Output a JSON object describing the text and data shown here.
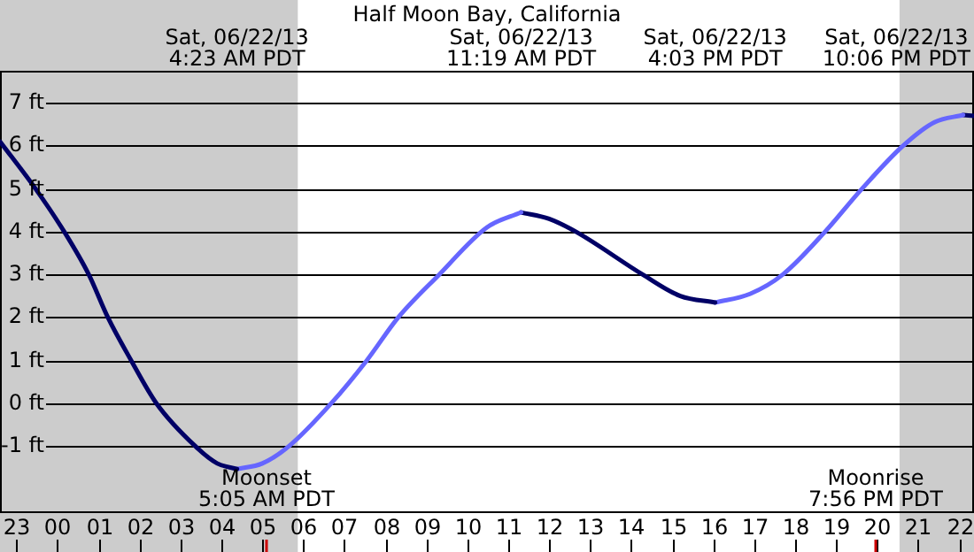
{
  "chart_data": {
    "type": "line",
    "title": "Half Moon Bay, California",
    "xlim": [
      "--06-21T22:36",
      "--06-22T22:22"
    ],
    "ylim": [
      -2.5,
      7.75
    ],
    "xticks": [
      {
        "value": "--06-21T23:00",
        "label": "23"
      },
      {
        "value": "--06-22T00:00",
        "label": "00"
      },
      {
        "value": "--06-22T01:00",
        "label": "01"
      },
      {
        "value": "--06-22T02:00",
        "label": "02"
      },
      {
        "value": "--06-22T03:00",
        "label": "03"
      },
      {
        "value": "--06-22T04:00",
        "label": "04"
      },
      {
        "value": "--06-22T05:00",
        "label": "05"
      },
      {
        "value": "--06-22T06:00",
        "label": "06"
      },
      {
        "value": "--06-22T07:00",
        "label": "07"
      },
      {
        "value": "--06-22T08:00",
        "label": "08"
      },
      {
        "value": "--06-22T09:00",
        "label": "09"
      },
      {
        "value": "--06-22T10:00",
        "label": "10"
      },
      {
        "value": "--06-22T11:00",
        "label": "11"
      },
      {
        "value": "--06-22T12:00",
        "label": "12"
      },
      {
        "value": "--06-22T13:00",
        "label": "13"
      },
      {
        "value": "--06-22T14:00",
        "label": "14"
      },
      {
        "value": "--06-22T15:00",
        "label": "15"
      },
      {
        "value": "--06-22T16:00",
        "label": "16"
      },
      {
        "value": "--06-22T17:00",
        "label": "17"
      },
      {
        "value": "--06-22T18:00",
        "label": "18"
      },
      {
        "value": "--06-22T19:00",
        "label": "19"
      },
      {
        "value": "--06-22T20:00",
        "label": "20"
      },
      {
        "value": "--06-22T21:00",
        "label": "21"
      },
      {
        "value": "--06-22T22:00",
        "label": "22"
      }
    ],
    "yticks": [
      {
        "value": -1,
        "label": "-1 ft"
      },
      {
        "value": 0,
        "label": "0 ft"
      },
      {
        "value": 1,
        "label": "1 ft"
      },
      {
        "value": 2,
        "label": "2 ft"
      },
      {
        "value": 3,
        "label": "3 ft"
      },
      {
        "value": 4,
        "label": "4 ft"
      },
      {
        "value": 5,
        "label": "5 ft"
      },
      {
        "value": 6,
        "label": "6 ft"
      },
      {
        "value": 7,
        "label": "7 ft"
      }
    ],
    "grid": "y",
    "legend": false,
    "marker": "none",
    "line_style": "solid",
    "bands": [
      {
        "axis": "x",
        "from": "--06-21T22:36",
        "to": "--06-22T05:52",
        "color": "#cccccc"
      },
      {
        "axis": "x",
        "from": "--06-22T20:33",
        "to": "--06-22T22:22",
        "color": "#cccccc"
      }
    ],
    "ref_lines": [
      {
        "axis": "x",
        "value": "--06-22T05:05",
        "label": "Moonset\n5:05 AM PDT",
        "color": "#cc0000"
      },
      {
        "axis": "x",
        "value": "--06-22T19:56",
        "label": "Moonrise\n7:56 PM PDT",
        "color": "#cc0000"
      }
    ],
    "series": [
      {
        "color": "#000066",
        "x": [
          "--06-21T22:36",
          "--06-21T23:28",
          "--06-22T00:10",
          "--06-22T00:46",
          "--06-22T01:14",
          "--06-22T01:48",
          "--06-22T02:25",
          "--06-22T03:22",
          "--06-22T03:54",
          "--06-22T04:23"
        ],
        "values": [
          6.1,
          5,
          4,
          3,
          2,
          1,
          0,
          -1,
          -1.4,
          -1.53
        ]
      },
      {
        "color": "#6666ff",
        "x": [
          "--06-22T04:23",
          "--06-22T05:00",
          "--06-22T05:39",
          "--06-22T06:41",
          "--06-22T07:33",
          "--06-22T08:19",
          "--06-22T09:19",
          "--06-22T10:29",
          "--06-22T11:19"
        ],
        "values": [
          -1.53,
          -1.4,
          -1,
          0,
          1,
          2,
          3,
          4.1,
          4.45
        ]
      },
      {
        "color": "#000066",
        "x": [
          "--06-22T11:19",
          "--06-22T12:00",
          "--06-22T12:39",
          "--06-22T14:17",
          "--06-22T15:12",
          "--06-22T16:03"
        ],
        "values": [
          4.45,
          4.3,
          4,
          3,
          2.5,
          2.35
        ]
      },
      {
        "color": "#6666ff",
        "x": [
          "--06-22T16:03",
          "--06-22T16:54",
          "--06-22T17:42",
          "--06-22T18:44",
          "--06-22T19:38",
          "--06-22T20:38",
          "--06-22T21:24",
          "--06-22T22:06"
        ],
        "values": [
          2.35,
          2.55,
          3,
          4,
          5,
          6,
          6.55,
          6.72
        ]
      },
      {
        "color": "#000066",
        "x": [
          "--06-22T22:06",
          "--06-22T22:22"
        ],
        "values": [
          6.72,
          6.7
        ]
      }
    ],
    "annotations": [
      "Sat, 06/22/13\n4:23 AM PDT",
      "Sat, 06/22/13\n11:19 AM PDT",
      "Sat, 06/22/13\n4:03 PM PDT",
      "Sat, 06/22/13\n10:06 PM PDT"
    ]
  }
}
